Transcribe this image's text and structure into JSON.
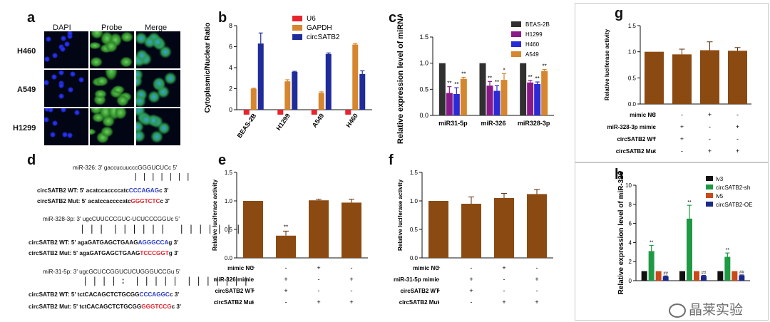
{
  "panels": {
    "a": {
      "label": "a",
      "columns": [
        "DAPI",
        "Probe",
        "Merge"
      ],
      "rows": [
        "H460",
        "A549",
        "H1299"
      ]
    },
    "b": {
      "label": "b",
      "chart_data": {
        "type": "bar",
        "ylabel": "Cytoplasmic/Nuclear Ratio",
        "ylim": [
          0,
          8
        ],
        "yticks": [
          0,
          2,
          4,
          6,
          8
        ],
        "categories": [
          "BEAS-2B",
          "H1299",
          "A549",
          "H460"
        ],
        "series": [
          {
            "name": "U6",
            "color": "#e8242e",
            "values": [
              0.4,
              0.4,
              0.4,
              0.4
            ],
            "errors": [
              0.05,
              0.05,
              0.05,
              0.05
            ],
            "below_axis": true
          },
          {
            "name": "GAPDH",
            "color": "#d6862e",
            "values": [
              2.0,
              2.7,
              1.6,
              6.2
            ],
            "errors": [
              0.05,
              0.15,
              0.1,
              0.1
            ]
          },
          {
            "name": "circSATB2",
            "color": "#1f2c99",
            "values": [
              6.3,
              3.6,
              5.3,
              3.4
            ],
            "errors": [
              1.0,
              0.05,
              0.1,
              0.3
            ]
          }
        ]
      }
    },
    "c": {
      "label": "c",
      "chart_data": {
        "type": "bar",
        "ylabel": "Relative expression level of miRNAs",
        "ylim": [
          0,
          1.5
        ],
        "yticks": [
          "0.0",
          "0.5",
          "1.0",
          "1.5"
        ],
        "categories": [
          "miR31-5p",
          "miR-326",
          "miR328-3p"
        ],
        "series": [
          {
            "name": "BEAS-2B",
            "color": "#303030",
            "values": [
              1.0,
              1.0,
              1.0
            ],
            "errors": [
              0,
              0,
              0
            ]
          },
          {
            "name": "H1299",
            "color": "#8a1a8a",
            "values": [
              0.43,
              0.57,
              0.63
            ],
            "errors": [
              0.12,
              0.08,
              0.04
            ]
          },
          {
            "name": "H460",
            "color": "#2a2ad6",
            "values": [
              0.41,
              0.47,
              0.6
            ],
            "errors": [
              0.12,
              0.1,
              0.04
            ]
          },
          {
            "name": "A549",
            "color": "#d6862e",
            "values": [
              0.7,
              0.68,
              0.85
            ],
            "errors": [
              0.03,
              0.12,
              0.03
            ]
          }
        ],
        "annotations": [
          "**",
          "**",
          "**",
          "**",
          "**",
          "*",
          "**",
          "**",
          "**"
        ]
      }
    },
    "d": {
      "label": "d",
      "blocks": [
        {
          "mirna": "miR-326: 3' gaccucuucccGGGUCUCc 5'",
          "bars": "| | | | | | |",
          "wt_prefix": "circSATB2  WT: 5' acatccaccccatc",
          "wt_site": "CCCAGAG",
          "wt_suffix": "c 3'",
          "mut_prefix": "circSATB2 Mut: 5' acatccaccccatc",
          "mut_site": "GGGTCTC",
          "mut_suffix": "c 3'"
        },
        {
          "mirna": "miR-328-3p: 3' ugcCUUCCCGUC-UCUCCCGGUc 5'",
          "bars": "| | |  | | | | | |   | | | | | | |",
          "wt_prefix": "circSATB2   WT: 5' agaGATGAGCTGAAG",
          "wt_site": "AGGGCCA",
          "wt_suffix": "g 3'",
          "mut_prefix": "circSATB2  Mut: 5' agaGATGAGCTGAAG",
          "mut_site": "TCCCGGT",
          "mut_suffix": "g 3'"
        },
        {
          "mirna": "miR-31-5p: 3' ugcGCUCCGGUCUCUGGGUCCGu 5'",
          "bars": "| | | | :  | | | | |  | | | | | | |",
          "wt_prefix": "circSATB2  WT: 5' tctCACAGCTCTGCGG",
          "wt_site": "CCCAGGC",
          "wt_suffix": "c 3'",
          "mut_prefix": "circSATB2 Mut: 5' tctCACAGCTCTGCGG",
          "mut_site": "GGGTCCG",
          "mut_suffix": "c 3'"
        }
      ]
    },
    "e": {
      "label": "e",
      "chart_data": {
        "type": "bar",
        "ylabel": "Relative luciferase activity",
        "ylim": [
          0,
          1.5
        ],
        "yticks": [
          "0.0",
          "0.5",
          "1.0",
          "1.5"
        ],
        "values": [
          1.0,
          0.39,
          1.01,
          0.97
        ],
        "errors": [
          0,
          0.08,
          0.02,
          0.06
        ],
        "annotations": [
          "",
          "**",
          "",
          ""
        ],
        "color": "#8b4a12",
        "treatments": [
          {
            "label": "mimic NC",
            "signs": [
              "+",
              "-",
              "+",
              "-"
            ]
          },
          {
            "label": "miR-326 mimic",
            "signs": [
              "-",
              "+",
              "-",
              "+"
            ]
          },
          {
            "label": "circSATB2 WT",
            "signs": [
              "+",
              "+",
              "-",
              "-"
            ]
          },
          {
            "label": "circSATB2 Mut",
            "signs": [
              "-",
              "-",
              "+",
              "+"
            ]
          }
        ]
      }
    },
    "f": {
      "label": "f",
      "chart_data": {
        "type": "bar",
        "ylabel": "Relative luciferase activity",
        "ylim": [
          0,
          1.5
        ],
        "yticks": [
          "0.0",
          "0.5",
          "1.0",
          "1.5"
        ],
        "values": [
          1.0,
          0.95,
          1.05,
          1.12
        ],
        "errors": [
          0,
          0.12,
          0.08,
          0.08
        ],
        "color": "#8b4a12",
        "treatments": [
          {
            "label": "mimic NC",
            "signs": [
              "+",
              "-",
              "+",
              "-"
            ]
          },
          {
            "label": "miR-31-5p mimic",
            "signs": [
              "-",
              "+",
              "-",
              "+"
            ]
          },
          {
            "label": "circSATB2 WT",
            "signs": [
              "+",
              "+",
              "-",
              "-"
            ]
          },
          {
            "label": "circSATB2 Mut",
            "signs": [
              "-",
              "-",
              "+",
              "+"
            ]
          }
        ]
      }
    },
    "g": {
      "label": "g",
      "chart_data": {
        "type": "bar",
        "ylabel": "Relative luciferase activity",
        "ylim": [
          0,
          1.5
        ],
        "yticks": [
          "0.0",
          "0.5",
          "1.0",
          "1.5"
        ],
        "values": [
          1.0,
          0.95,
          1.03,
          1.02
        ],
        "errors": [
          0,
          0.1,
          0.16,
          0.06
        ],
        "color": "#8b4a12",
        "treatments": [
          {
            "label": "mimic NC",
            "signs": [
              "+",
              "-",
              "+",
              "-"
            ]
          },
          {
            "label": "miR-328-3p mimic",
            "signs": [
              "-",
              "+",
              "-",
              "+"
            ]
          },
          {
            "label": "circSATB2 WT",
            "signs": [
              "+",
              "+",
              "-",
              "-"
            ]
          },
          {
            "label": "circSATB2 Mut",
            "signs": [
              "-",
              "-",
              "+",
              "+"
            ]
          }
        ]
      }
    },
    "h": {
      "label": "h",
      "chart_data": {
        "type": "bar",
        "ylabel": "Relative expression level of miR-326",
        "ylim": [
          0,
          10
        ],
        "yticks": [
          0,
          2,
          4,
          6,
          8,
          10
        ],
        "categories": [
          "",
          "",
          ""
        ],
        "series": [
          {
            "name": "lv3",
            "color": "#111111",
            "values": [
              1.0,
              1.0,
              1.0
            ],
            "errors": [
              0,
              0,
              0
            ]
          },
          {
            "name": "circSATB2-sh",
            "color": "#1e9a44",
            "values": [
              3.1,
              6.5,
              2.5
            ],
            "errors": [
              0.6,
              1.4,
              0.4
            ]
          },
          {
            "name": "lv5",
            "color": "#c94a1a",
            "values": [
              1.0,
              1.0,
              1.0
            ],
            "errors": [
              0,
              0,
              0
            ]
          },
          {
            "name": "circSATB2-OE",
            "color": "#1a2a8a",
            "values": [
              0.45,
              0.5,
              0.55
            ],
            "errors": [
              0.05,
              0.05,
              0.05
            ]
          }
        ],
        "annotations": [
          "**",
          "**",
          "**"
        ],
        "annotations_oe": [
          "##",
          "##",
          "##"
        ]
      }
    },
    "watermark": "晶莱实验"
  }
}
